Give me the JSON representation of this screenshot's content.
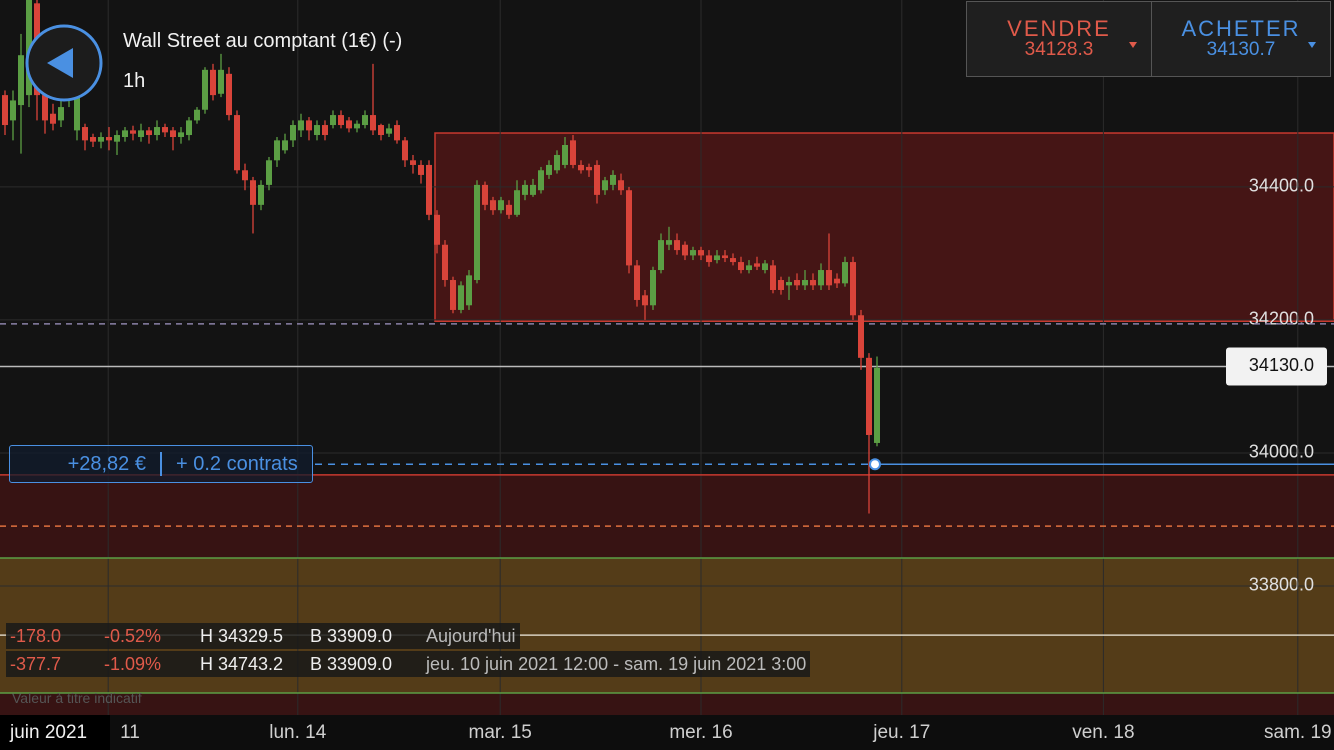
{
  "header": {
    "title": "Wall Street au comptant (1€) (-)",
    "interval": "1h"
  },
  "quote": {
    "sell": {
      "label": "VENDRE",
      "price": "34128.3"
    },
    "buy": {
      "label": "ACHETER",
      "price": "34130.7"
    }
  },
  "stats": {
    "rows": [
      [
        "-178.0",
        "-0.52%",
        "H 34329.5",
        "B 33909.0",
        "Aujourd'hui"
      ],
      [
        "-377.7",
        "-1.09%",
        "H 34743.2",
        "B 33909.0",
        "jeu. 10 juin 2021 12:00 - sam. 19 juin 2021 3:00"
      ]
    ],
    "note": "Valeur à titre indicatif"
  },
  "chart_data": {
    "type": "candlestick",
    "month_label": "juin 2021",
    "up_color": "#5b9e44",
    "down_color": "#d9443a",
    "grid": true,
    "xlim": [
      -0.625,
      166.125
    ],
    "xticks": [
      {
        "value": 12.9,
        "label": "11"
      },
      {
        "value": 36.6,
        "label": "lun. 14"
      },
      {
        "value": 61.9,
        "label": "mar. 15"
      },
      {
        "value": 87,
        "label": "mer. 16"
      },
      {
        "value": 112.1,
        "label": "jeu. 17"
      },
      {
        "value": 137.3,
        "label": "ven. 18"
      },
      {
        "value": 161.6,
        "label": "sam. 19"
      }
    ],
    "ylim": [
      33606,
      34681
    ],
    "yticks": [
      {
        "value": 34400,
        "label": "34400.0"
      },
      {
        "value": 34200,
        "label": "34200.0"
      },
      {
        "value": 34000,
        "label": "34000.0"
      },
      {
        "value": 33800,
        "label": "33800.0"
      }
    ],
    "last_price": {
      "value": 34130,
      "label": "34130.0",
      "color": "#bbbbbb"
    },
    "zones": [
      {
        "from": 34198,
        "to": 34481,
        "x_from": 53.75,
        "color": "rgba(130,25,25,0.45)",
        "border": "#c8392f"
      },
      {
        "from": 33606,
        "to": 33967,
        "color": "rgba(110,20,20,0.40)"
      },
      {
        "from": 33639,
        "to": 33842,
        "color": "rgba(120,110,30,0.45)"
      }
    ],
    "levels": [
      {
        "value": 34194,
        "color": "#8c82a8",
        "style": "dashed"
      },
      {
        "value": 33967,
        "color": "#c8392f",
        "style": "solid"
      },
      {
        "value": 33890,
        "color": "#e0703f",
        "style": "dashed"
      },
      {
        "value": 33842,
        "color": "#5b9e44",
        "style": "solid"
      },
      {
        "value": 33726,
        "color": "#d8d0c0",
        "style": "solid"
      },
      {
        "value": 33639,
        "color": "#5b9e44",
        "style": "solid"
      }
    ],
    "position": {
      "value": 33983,
      "at": 108.75,
      "color": "#4a90e2",
      "pnl": "+28,82 €",
      "size": "+ 0.2 contrats"
    },
    "candles": [
      [
        34538,
        34545,
        34478,
        34493
      ],
      [
        34500,
        34545,
        34470,
        34530
      ],
      [
        34523,
        34630,
        34450,
        34598
      ],
      [
        34538,
        34681,
        34520,
        34681
      ],
      [
        34676,
        34681,
        34500,
        34538
      ],
      [
        34538,
        34545,
        34480,
        34500
      ],
      [
        34510,
        34525,
        34485,
        34495
      ],
      [
        34500,
        34530,
        34490,
        34520
      ],
      [
        34530,
        34560,
        34520,
        34545
      ],
      [
        34485,
        34600,
        34470,
        34590
      ],
      [
        34490,
        34495,
        34455,
        34470
      ],
      [
        34475,
        34480,
        34460,
        34468
      ],
      [
        34468,
        34482,
        34458,
        34475
      ],
      [
        34475,
        34490,
        34455,
        34470
      ],
      [
        34468,
        34485,
        34448,
        34478
      ],
      [
        34475,
        34490,
        34468,
        34485
      ],
      [
        34485,
        34492,
        34470,
        34480
      ],
      [
        34475,
        34495,
        34468,
        34485
      ],
      [
        34485,
        34490,
        34465,
        34478
      ],
      [
        34478,
        34500,
        34470,
        34490
      ],
      [
        34490,
        34495,
        34475,
        34482
      ],
      [
        34485,
        34490,
        34455,
        34475
      ],
      [
        34475,
        34490,
        34465,
        34482
      ],
      [
        34478,
        34505,
        34470,
        34500
      ],
      [
        34500,
        34520,
        34495,
        34516
      ],
      [
        34516,
        34580,
        34510,
        34576
      ],
      [
        34576,
        34585,
        34530,
        34538
      ],
      [
        34540,
        34600,
        34535,
        34576
      ],
      [
        34570,
        34580,
        34500,
        34508
      ],
      [
        34508,
        34515,
        34420,
        34425
      ],
      [
        34425,
        34435,
        34395,
        34410
      ],
      [
        34410,
        34415,
        34330,
        34373
      ],
      [
        34373,
        34410,
        34365,
        34403
      ],
      [
        34403,
        34445,
        34395,
        34440
      ],
      [
        34440,
        34475,
        34430,
        34470
      ],
      [
        34455,
        34480,
        34450,
        34470
      ],
      [
        34470,
        34500,
        34460,
        34493
      ],
      [
        34485,
        34510,
        34475,
        34500
      ],
      [
        34500,
        34505,
        34470,
        34485
      ],
      [
        34478,
        34500,
        34470,
        34493
      ],
      [
        34493,
        34500,
        34470,
        34478
      ],
      [
        34493,
        34515,
        34488,
        34508
      ],
      [
        34508,
        34515,
        34488,
        34493
      ],
      [
        34500,
        34505,
        34482,
        34488
      ],
      [
        34488,
        34500,
        34482,
        34495
      ],
      [
        34493,
        34515,
        34488,
        34508
      ],
      [
        34508,
        34585,
        34478,
        34485
      ],
      [
        34493,
        34495,
        34470,
        34478
      ],
      [
        34480,
        34495,
        34475,
        34488
      ],
      [
        34493,
        34500,
        34465,
        34470
      ],
      [
        34470,
        34475,
        34430,
        34440
      ],
      [
        34440,
        34448,
        34420,
        34433
      ],
      [
        34433,
        34440,
        34405,
        34418
      ],
      [
        34433,
        34440,
        34350,
        34358
      ],
      [
        34358,
        34365,
        34300,
        34313
      ],
      [
        34313,
        34320,
        34250,
        34260
      ],
      [
        34260,
        34265,
        34210,
        34215
      ],
      [
        34215,
        34258,
        34210,
        34252
      ],
      [
        34222,
        34275,
        34215,
        34267
      ],
      [
        34260,
        34410,
        34255,
        34403
      ],
      [
        34403,
        34408,
        34365,
        34373
      ],
      [
        34380,
        34385,
        34358,
        34365
      ],
      [
        34365,
        34385,
        34360,
        34380
      ],
      [
        34373,
        34380,
        34352,
        34358
      ],
      [
        34358,
        34410,
        34355,
        34395
      ],
      [
        34388,
        34410,
        34380,
        34403
      ],
      [
        34388,
        34412,
        34385,
        34403
      ],
      [
        34395,
        34430,
        34390,
        34425
      ],
      [
        34418,
        34440,
        34412,
        34433
      ],
      [
        34425,
        34455,
        34420,
        34448
      ],
      [
        34433,
        34475,
        34428,
        34463
      ],
      [
        34470,
        34478,
        34428,
        34433
      ],
      [
        34433,
        34440,
        34420,
        34425
      ],
      [
        34430,
        34435,
        34415,
        34425
      ],
      [
        34433,
        34440,
        34375,
        34388
      ],
      [
        34395,
        34415,
        34388,
        34410
      ],
      [
        34403,
        34425,
        34395,
        34418
      ],
      [
        34410,
        34420,
        34388,
        34395
      ],
      [
        34395,
        34400,
        34270,
        34282
      ],
      [
        34282,
        34290,
        34220,
        34230
      ],
      [
        34237,
        34245,
        34200,
        34222
      ],
      [
        34222,
        34280,
        34215,
        34275
      ],
      [
        34275,
        34330,
        34270,
        34320
      ],
      [
        34313,
        34340,
        34305,
        34320
      ],
      [
        34320,
        34330,
        34298,
        34305
      ],
      [
        34313,
        34318,
        34290,
        34297
      ],
      [
        34297,
        34310,
        34290,
        34305
      ],
      [
        34305,
        34310,
        34290,
        34297
      ],
      [
        34297,
        34305,
        34280,
        34287
      ],
      [
        34290,
        34305,
        34285,
        34297
      ],
      [
        34297,
        34305,
        34287,
        34293
      ],
      [
        34293,
        34300,
        34282,
        34287
      ],
      [
        34287,
        34295,
        34270,
        34275
      ],
      [
        34275,
        34290,
        34270,
        34282
      ],
      [
        34285,
        34295,
        34275,
        34280
      ],
      [
        34275,
        34290,
        34270,
        34285
      ],
      [
        34282,
        34290,
        34240,
        34245
      ],
      [
        34260,
        34265,
        34238,
        34245
      ],
      [
        34252,
        34265,
        34230,
        34257
      ],
      [
        34260,
        34270,
        34245,
        34252
      ],
      [
        34252,
        34275,
        34245,
        34260
      ],
      [
        34260,
        34270,
        34245,
        34252
      ],
      [
        34252,
        34285,
        34245,
        34275
      ],
      [
        34275,
        34330,
        34245,
        34252
      ],
      [
        34262,
        34270,
        34248,
        34255
      ],
      [
        34255,
        34295,
        34250,
        34287
      ],
      [
        34287,
        34295,
        34200,
        34207
      ],
      [
        34207,
        34215,
        34125,
        34143
      ],
      [
        34143,
        34150,
        33909,
        34027
      ],
      [
        34015,
        34145,
        34010,
        34128
      ]
    ]
  }
}
